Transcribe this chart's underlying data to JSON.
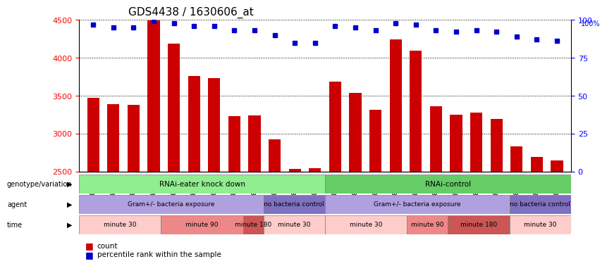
{
  "title": "GDS4438 / 1630606_at",
  "samples": [
    "GSM783343",
    "GSM783344",
    "GSM783345",
    "GSM783349",
    "GSM783350",
    "GSM783351",
    "GSM783355",
    "GSM783356",
    "GSM783357",
    "GSM783337",
    "GSM783338",
    "GSM783339",
    "GSM783340",
    "GSM783341",
    "GSM783342",
    "GSM783346",
    "GSM783347",
    "GSM783348",
    "GSM783352",
    "GSM783353",
    "GSM783354",
    "GSM783334",
    "GSM783335",
    "GSM783336"
  ],
  "counts": [
    3470,
    3390,
    3380,
    4490,
    4190,
    3760,
    3730,
    3230,
    3240,
    2920,
    2530,
    2540,
    3680,
    3540,
    3310,
    4240,
    4090,
    3360,
    3250,
    3280,
    3190,
    2830,
    2690,
    2640
  ],
  "percentile_ranks": [
    97,
    95,
    95,
    99,
    98,
    96,
    96,
    93,
    93,
    90,
    85,
    85,
    96,
    95,
    93,
    98,
    97,
    93,
    92,
    93,
    92,
    89,
    87,
    86
  ],
  "bar_color": "#cc0000",
  "dot_color": "#0000cc",
  "ylim_left": [
    2500,
    4500
  ],
  "ylim_right": [
    0,
    100
  ],
  "yticks_left": [
    2500,
    3000,
    3500,
    4000,
    4500
  ],
  "yticks_right": [
    0,
    25,
    50,
    75,
    100
  ],
  "genotype_groups": [
    {
      "label": "RNAi-eater knock down",
      "start": 0,
      "end": 12,
      "color": "#90ee90"
    },
    {
      "label": "RNAi-control",
      "start": 12,
      "end": 24,
      "color": "#66cc66"
    }
  ],
  "agent_groups": [
    {
      "label": "Gram+/- bacteria exposure",
      "start": 0,
      "end": 9,
      "color": "#b0a0e0"
    },
    {
      "label": "no bacteria control",
      "start": 9,
      "end": 12,
      "color": "#8070c0"
    },
    {
      "label": "Gram+/- bacteria exposure",
      "start": 12,
      "end": 21,
      "color": "#b0a0e0"
    },
    {
      "label": "no bacteria control",
      "start": 21,
      "end": 24,
      "color": "#8070c0"
    }
  ],
  "time_groups": [
    {
      "label": "minute 30",
      "start": 0,
      "end": 4,
      "color": "#ffcccc"
    },
    {
      "label": "minute 90",
      "start": 4,
      "end": 8,
      "color": "#ee8888"
    },
    {
      "label": "minute 180",
      "start": 8,
      "end": 9,
      "color": "#cc5555"
    },
    {
      "label": "minute 30",
      "start": 9,
      "end": 12,
      "color": "#ffcccc"
    },
    {
      "label": "minute 30",
      "start": 12,
      "end": 16,
      "color": "#ffcccc"
    },
    {
      "label": "minute 90",
      "start": 16,
      "end": 18,
      "color": "#ee8888"
    },
    {
      "label": "minute 180",
      "start": 18,
      "end": 21,
      "color": "#cc5555"
    },
    {
      "label": "minute 30",
      "start": 21,
      "end": 24,
      "color": "#ffcccc"
    }
  ],
  "row_labels": [
    "genotype/variation",
    "agent",
    "time"
  ],
  "legend_items": [
    {
      "label": "count",
      "color": "#cc0000"
    },
    {
      "label": "percentile rank within the sample",
      "color": "#0000cc"
    }
  ],
  "background_color": "#f0f0f0"
}
